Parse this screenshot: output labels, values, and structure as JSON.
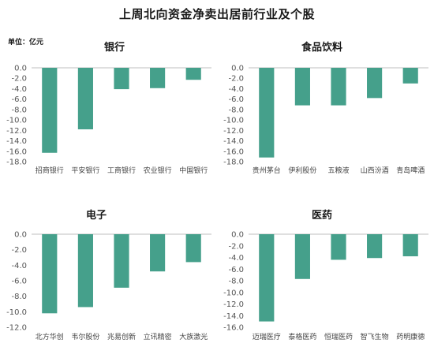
{
  "title": "上周北向资金净卖出居前行业及个股",
  "unit_label": "单位：亿元",
  "colors": {
    "bar": "#45a08b"
  },
  "chart_data": [
    {
      "type": "bar",
      "title": "银行",
      "categories": [
        "招商银行",
        "平安银行",
        "工商银行",
        "农业银行",
        "中国银行"
      ],
      "values": [
        -16.3,
        -11.8,
        -4.1,
        -3.9,
        -2.3
      ],
      "ylim": [
        -18,
        0
      ],
      "yticks": [
        "0.0",
        "-2.0",
        "-4.0",
        "-6.0",
        "-8.0",
        "-10.0",
        "-12.0",
        "-14.0",
        "-16.0",
        "-18.0"
      ]
    },
    {
      "type": "bar",
      "title": "食品饮料",
      "categories": [
        "贵州茅台",
        "伊利股份",
        "五粮液",
        "山西汾酒",
        "青岛啤酒"
      ],
      "values": [
        -17.2,
        -7.2,
        -7.2,
        -5.8,
        -3.0
      ],
      "ylim": [
        -18,
        0
      ],
      "yticks": [
        "0.0",
        "-2.0",
        "-4.0",
        "-6.0",
        "-8.0",
        "-10.0",
        "-12.0",
        "-14.0",
        "-16.0",
        "-18.0"
      ]
    },
    {
      "type": "bar",
      "title": "电子",
      "categories": [
        "北方华创",
        "韦尔股份",
        "兆易创新",
        "立讯精密",
        "大族激光"
      ],
      "values": [
        -10.2,
        -9.4,
        -6.9,
        -4.8,
        -3.6
      ],
      "ylim": [
        -12,
        0
      ],
      "yticks": [
        "0.0",
        "-2.0",
        "-4.0",
        "-6.0",
        "-8.0",
        "-10.0",
        "-12.0"
      ]
    },
    {
      "type": "bar",
      "title": "医药",
      "categories": [
        "迈瑞医疗",
        "泰格医药",
        "恒瑞医药",
        "智飞生物",
        "药明康德"
      ],
      "values": [
        -15.0,
        -7.7,
        -4.4,
        -4.1,
        -3.8
      ],
      "ylim": [
        -16,
        0
      ],
      "yticks": [
        "0.0",
        "-2.0",
        "-4.0",
        "-6.0",
        "-8.0",
        "-10.0",
        "-12.0",
        "-14.0",
        "-16.0"
      ]
    }
  ]
}
